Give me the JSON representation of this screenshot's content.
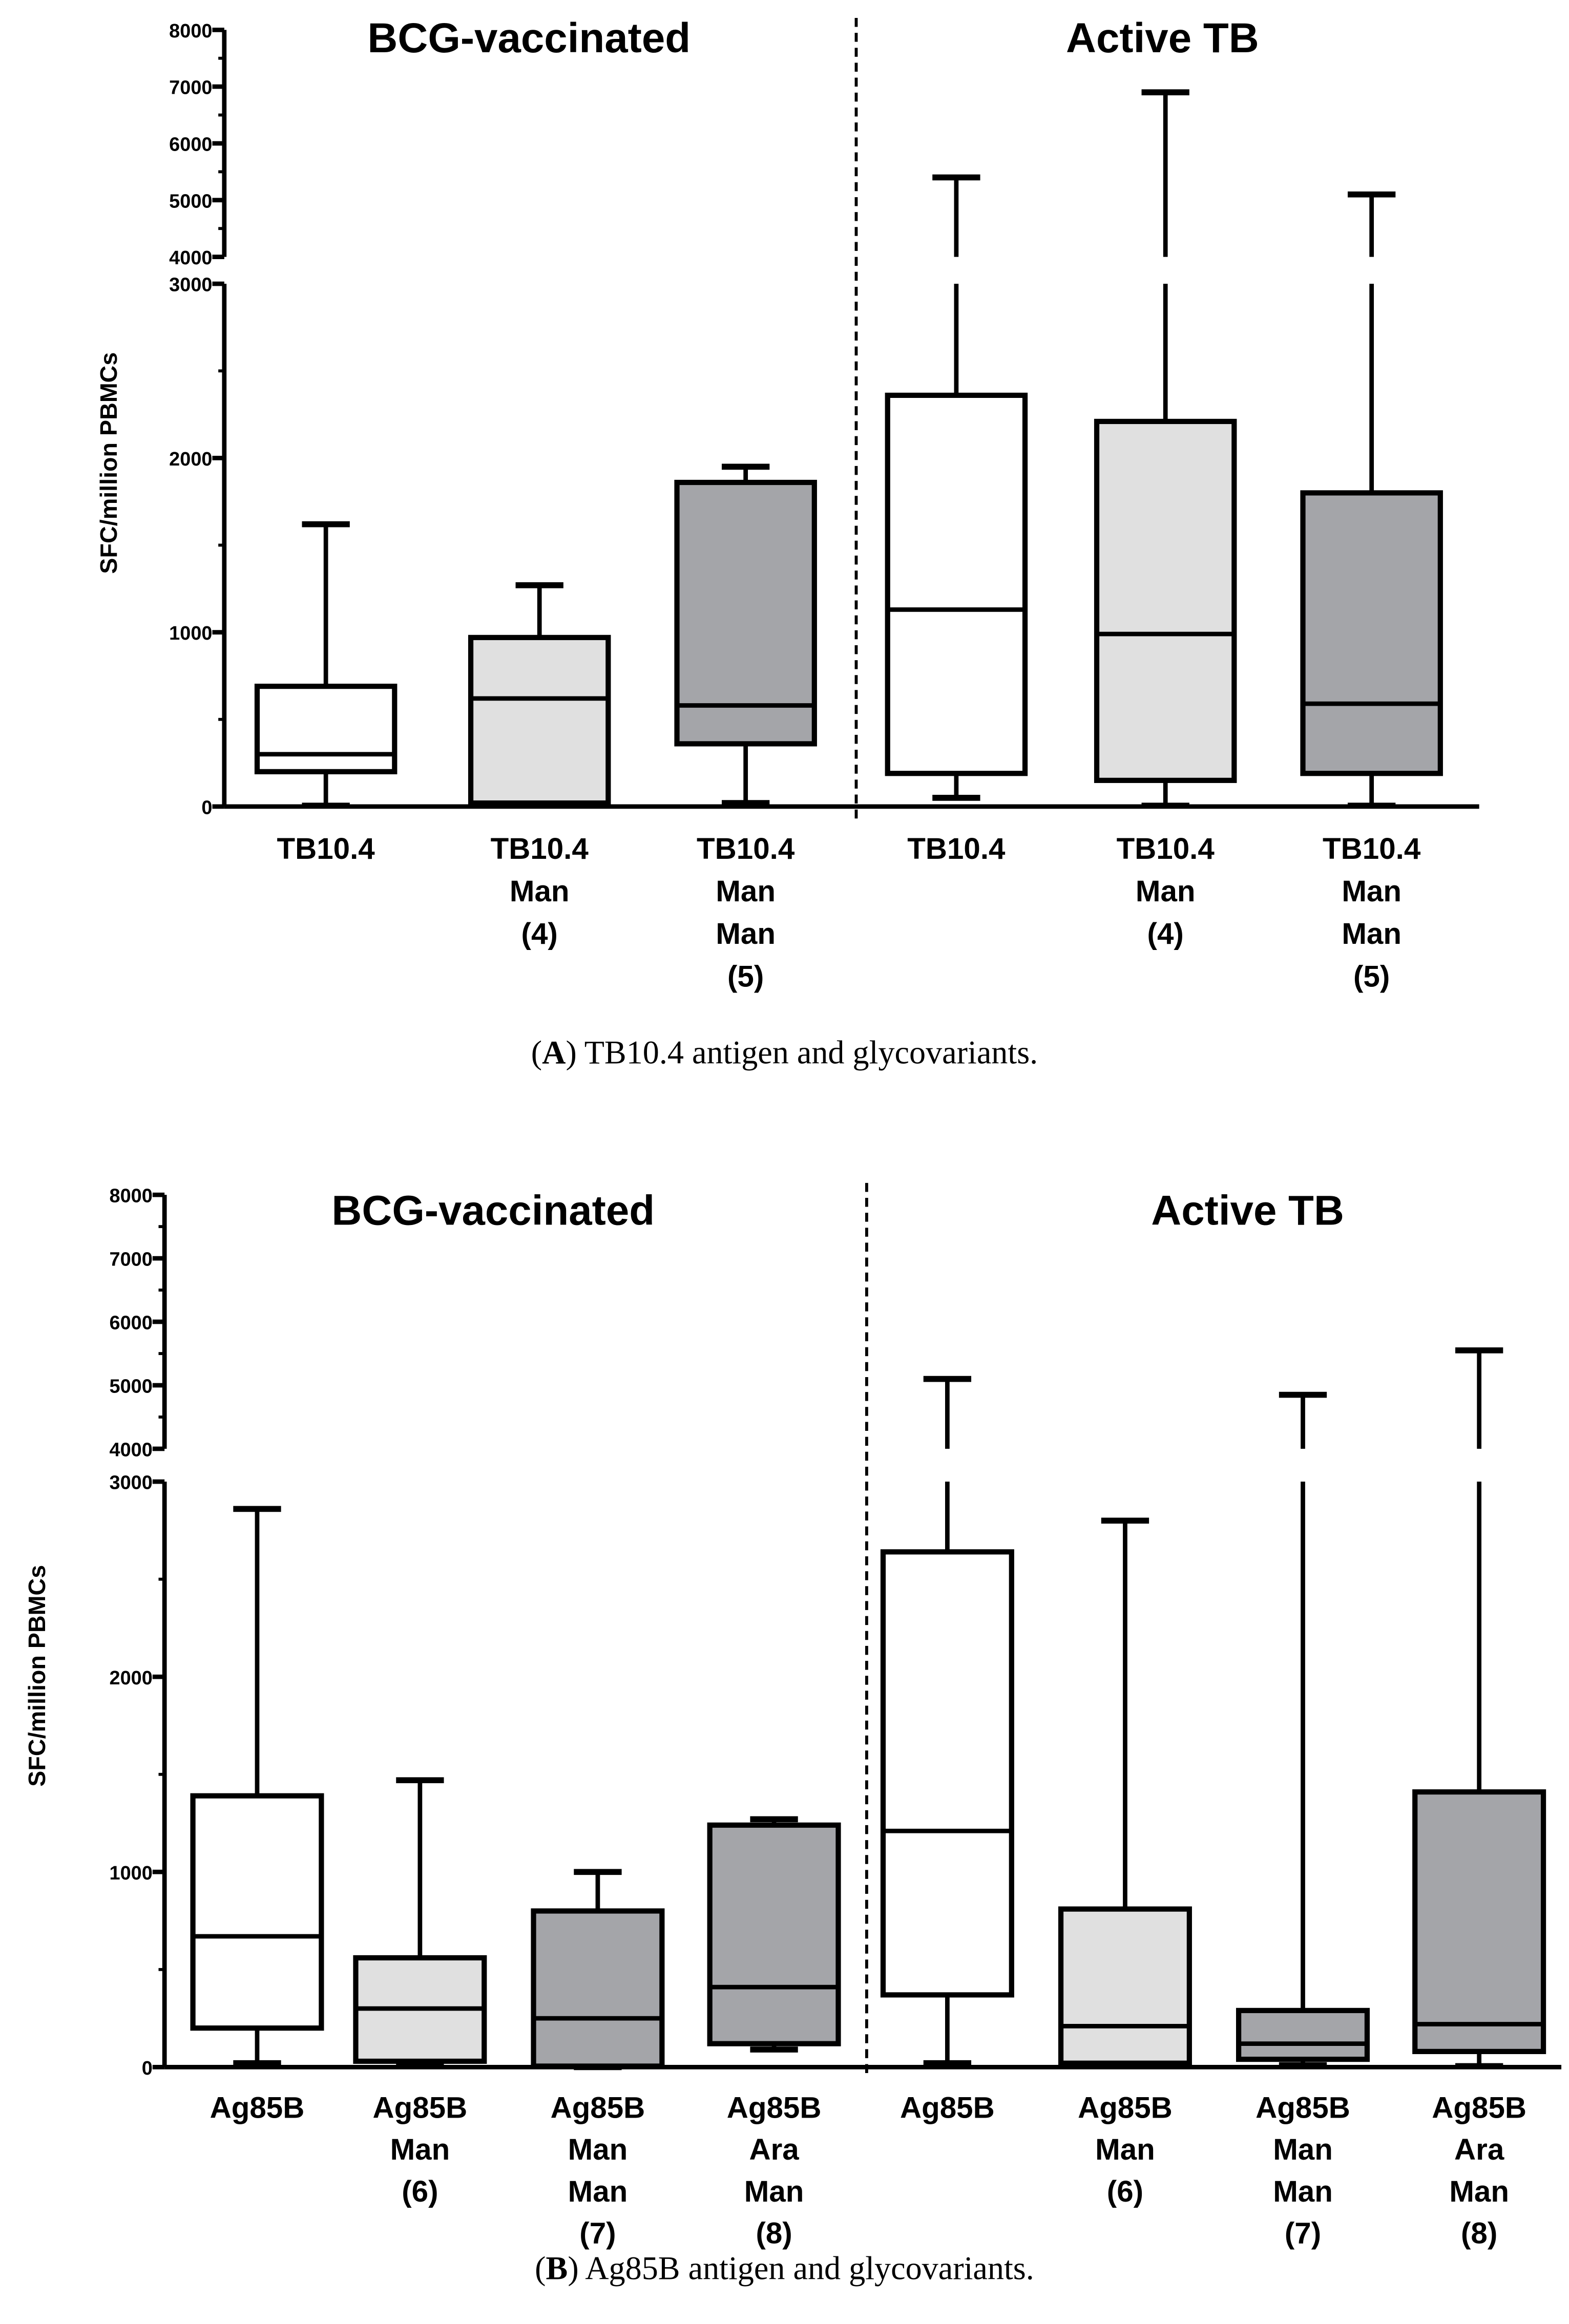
{
  "chart_data": [
    {
      "type": "box",
      "caption_letter": "A",
      "caption_text": " TB10.4 antigen and glycovariants.",
      "ylabel": "SFC/million PBMCs",
      "group_titles": [
        "BCG-vaccinated",
        "Active TB"
      ],
      "yaxis": {
        "lower_range": [
          0,
          3000
        ],
        "upper_range": [
          4000,
          8000
        ],
        "lower_ticks": [
          "0",
          "1000",
          "2000",
          "3000"
        ],
        "upper_ticks": [
          "4000",
          "5000",
          "6000",
          "7000",
          "8000"
        ]
      },
      "colors": {
        "white": "#ffffff",
        "light": "#e0e0e0",
        "dark": "#a4a5a9"
      },
      "boxes": [
        {
          "group": "BCG-vaccinated",
          "label": [
            "TB10.4"
          ],
          "fill": "white",
          "min": 5,
          "q1": 200,
          "median": 300,
          "q3": 690,
          "max": 1620
        },
        {
          "group": "BCG-vaccinated",
          "label": [
            "TB10.4",
            "Man",
            "(4)"
          ],
          "fill": "light",
          "min": 5,
          "q1": 20,
          "median": 620,
          "q3": 970,
          "max": 1270
        },
        {
          "group": "BCG-vaccinated",
          "label": [
            "TB10.4",
            "Man",
            "Man",
            "(5)"
          ],
          "fill": "dark",
          "min": 20,
          "q1": 360,
          "median": 580,
          "q3": 1860,
          "max": 1950
        },
        {
          "group": "Active TB",
          "label": [
            "TB10.4"
          ],
          "fill": "white",
          "min": 50,
          "q1": 190,
          "median": 1130,
          "q3": 2360,
          "max": 5400
        },
        {
          "group": "Active TB",
          "label": [
            "TB10.4",
            "Man",
            "(4)"
          ],
          "fill": "light",
          "min": 5,
          "q1": 150,
          "median": 990,
          "q3": 2210,
          "max": 6900
        },
        {
          "group": "Active TB",
          "label": [
            "TB10.4",
            "Man",
            "Man",
            "(5)"
          ],
          "fill": "dark",
          "min": 5,
          "q1": 190,
          "median": 590,
          "q3": 1800,
          "max": 5100
        }
      ]
    },
    {
      "type": "box",
      "caption_letter": "B",
      "caption_text": " Ag85B antigen and glycovariants.",
      "ylabel": "SFC/million PBMCs",
      "group_titles": [
        "BCG-vaccinated",
        "Active TB"
      ],
      "yaxis": {
        "lower_range": [
          0,
          3000
        ],
        "upper_range": [
          4000,
          8000
        ],
        "lower_ticks": [
          "0",
          "1000",
          "2000",
          "3000"
        ],
        "upper_ticks": [
          "4000",
          "5000",
          "6000",
          "7000",
          "8000"
        ]
      },
      "colors": {
        "white": "#ffffff",
        "light": "#e0e0e0",
        "dark": "#a4a5a9"
      },
      "boxes": [
        {
          "group": "BCG-vaccinated",
          "label": [
            "Ag85B"
          ],
          "fill": "white",
          "min": 20,
          "q1": 200,
          "median": 670,
          "q3": 1390,
          "max": 2860
        },
        {
          "group": "BCG-vaccinated",
          "label": [
            "Ag85B",
            "Man",
            "(6)"
          ],
          "fill": "light",
          "min": 10,
          "q1": 30,
          "median": 300,
          "q3": 560,
          "max": 1470
        },
        {
          "group": "BCG-vaccinated",
          "label": [
            "Ag85B",
            "Man",
            "Man",
            "(7)"
          ],
          "fill": "dark",
          "min": 0,
          "q1": 5,
          "median": 250,
          "q3": 800,
          "max": 1000
        },
        {
          "group": "BCG-vaccinated",
          "label": [
            "Ag85B",
            "Ara",
            "Man",
            "(8)"
          ],
          "fill": "dark",
          "min": 90,
          "q1": 120,
          "median": 410,
          "q3": 1240,
          "max": 1270
        },
        {
          "group": "Active TB",
          "label": [
            "Ag85B"
          ],
          "fill": "white",
          "min": 20,
          "q1": 370,
          "median": 1210,
          "q3": 2640,
          "max": 5100
        },
        {
          "group": "Active TB",
          "label": [
            "Ag85B",
            "Man",
            "(6)"
          ],
          "fill": "light",
          "min": 10,
          "q1": 20,
          "median": 210,
          "q3": 810,
          "max": 2800
        },
        {
          "group": "Active TB",
          "label": [
            "Ag85B",
            "Man",
            "Man",
            "(7)"
          ],
          "fill": "dark",
          "min": 10,
          "q1": 40,
          "median": 120,
          "q3": 290,
          "max": 4850
        },
        {
          "group": "Active TB",
          "label": [
            "Ag85B",
            "Ara",
            "Man",
            "(8)"
          ],
          "fill": "dark",
          "min": 5,
          "q1": 80,
          "median": 220,
          "q3": 1410,
          "max": 5550
        }
      ]
    }
  ]
}
